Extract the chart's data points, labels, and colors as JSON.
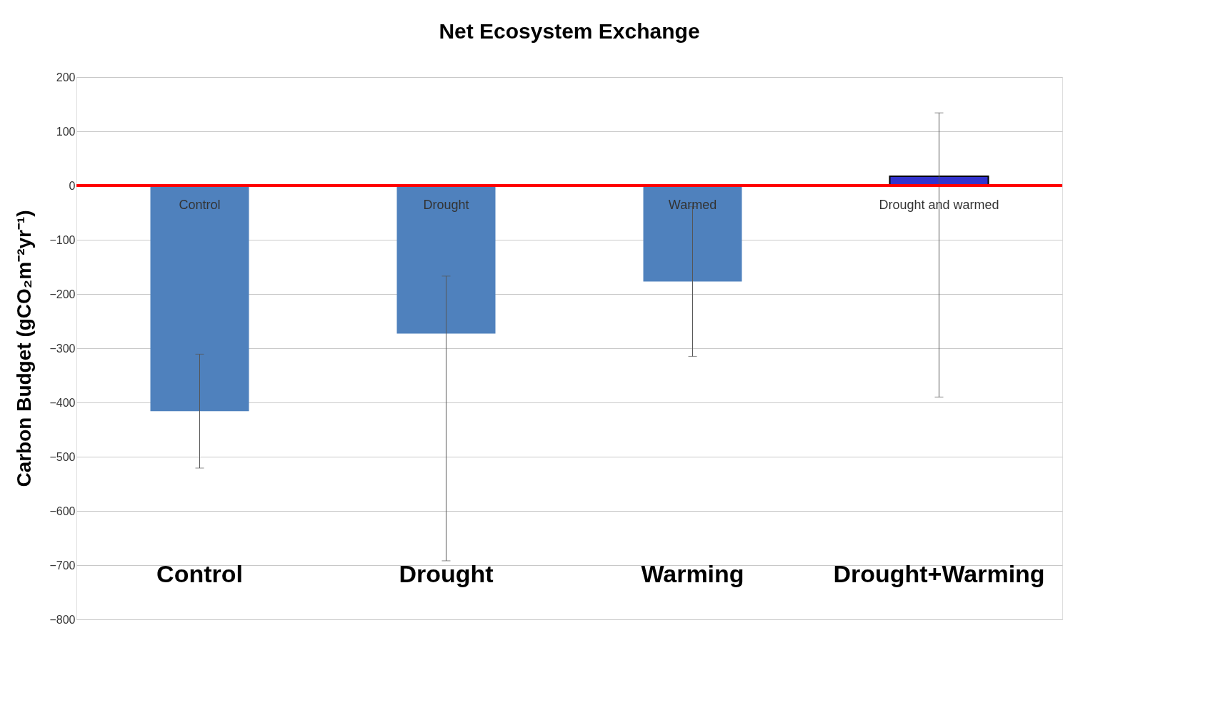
{
  "chart_data": {
    "type": "bar",
    "title": "Net Ecosystem Exchange",
    "ylabel": "Carbon Budget (gCO₂m⁻²yr⁻¹)",
    "categories": [
      "Control",
      "Drought",
      "Warming",
      "Drought+Warming"
    ],
    "values": [
      -416,
      -273,
      -177,
      17
    ],
    "colors": [
      "#4f81bd",
      "#4f81bd",
      "#4f81bd",
      "#3333cc"
    ],
    "errors": [
      105,
      [
        -692,
        -167
      ],
      138,
      [
        -390,
        134
      ]
    ],
    "ylim": [
      -800,
      200
    ],
    "yticks": [
      -800,
      -700,
      -600,
      -500,
      -400,
      -300,
      -200,
      -100,
      0,
      100,
      200
    ],
    "grid": "y",
    "ref_lines": [
      {
        "axis": "y",
        "value": 0,
        "color": "#ff0000"
      }
    ],
    "annotations": [
      "Control",
      "Drought",
      "Warmed",
      "Drought and warmed"
    ]
  }
}
